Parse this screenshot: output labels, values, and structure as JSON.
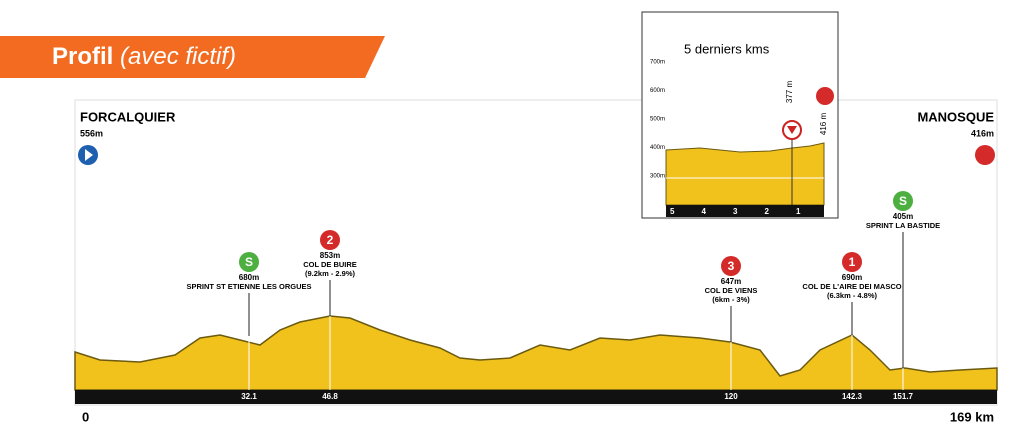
{
  "header": {
    "title": "Profil",
    "subtitle": "(avec fictif)"
  },
  "start": {
    "name": "FORCALQUIER",
    "altitude": "556m"
  },
  "finish": {
    "name": "MANOSQUE",
    "altitude": "416m"
  },
  "points": [
    {
      "icon": "S",
      "lines": [
        "680m",
        "SPRINT ST ETIENNE LES ORGUES"
      ],
      "km": "32.1"
    },
    {
      "icon": "2",
      "lines": [
        "853m",
        "COL DE BUIRE",
        "(9.2km - 2.9%)"
      ],
      "km": "46.8"
    },
    {
      "icon": "3",
      "lines": [
        "647m",
        "COL DE VIENS",
        "(6km - 3%)"
      ],
      "km": "120"
    },
    {
      "icon": "1",
      "lines": [
        "690m",
        "COL DE L'AIRE DEI MASCO",
        "(6.3km - 4.8%)"
      ],
      "km": "142.3"
    },
    {
      "icon": "S",
      "lines": [
        "405m",
        "SPRINT LA BASTIDE"
      ],
      "km": "151.7"
    }
  ],
  "distance": {
    "start": "0",
    "end": "169 km"
  },
  "inset": {
    "title": "5 derniers kms",
    "y_labels": [
      "700m",
      "600m",
      "500m",
      "400m",
      "300m"
    ],
    "km_labels": [
      "5",
      "4",
      "3",
      "2",
      "1"
    ],
    "markers": [
      "377 m",
      "416 m"
    ]
  }
}
